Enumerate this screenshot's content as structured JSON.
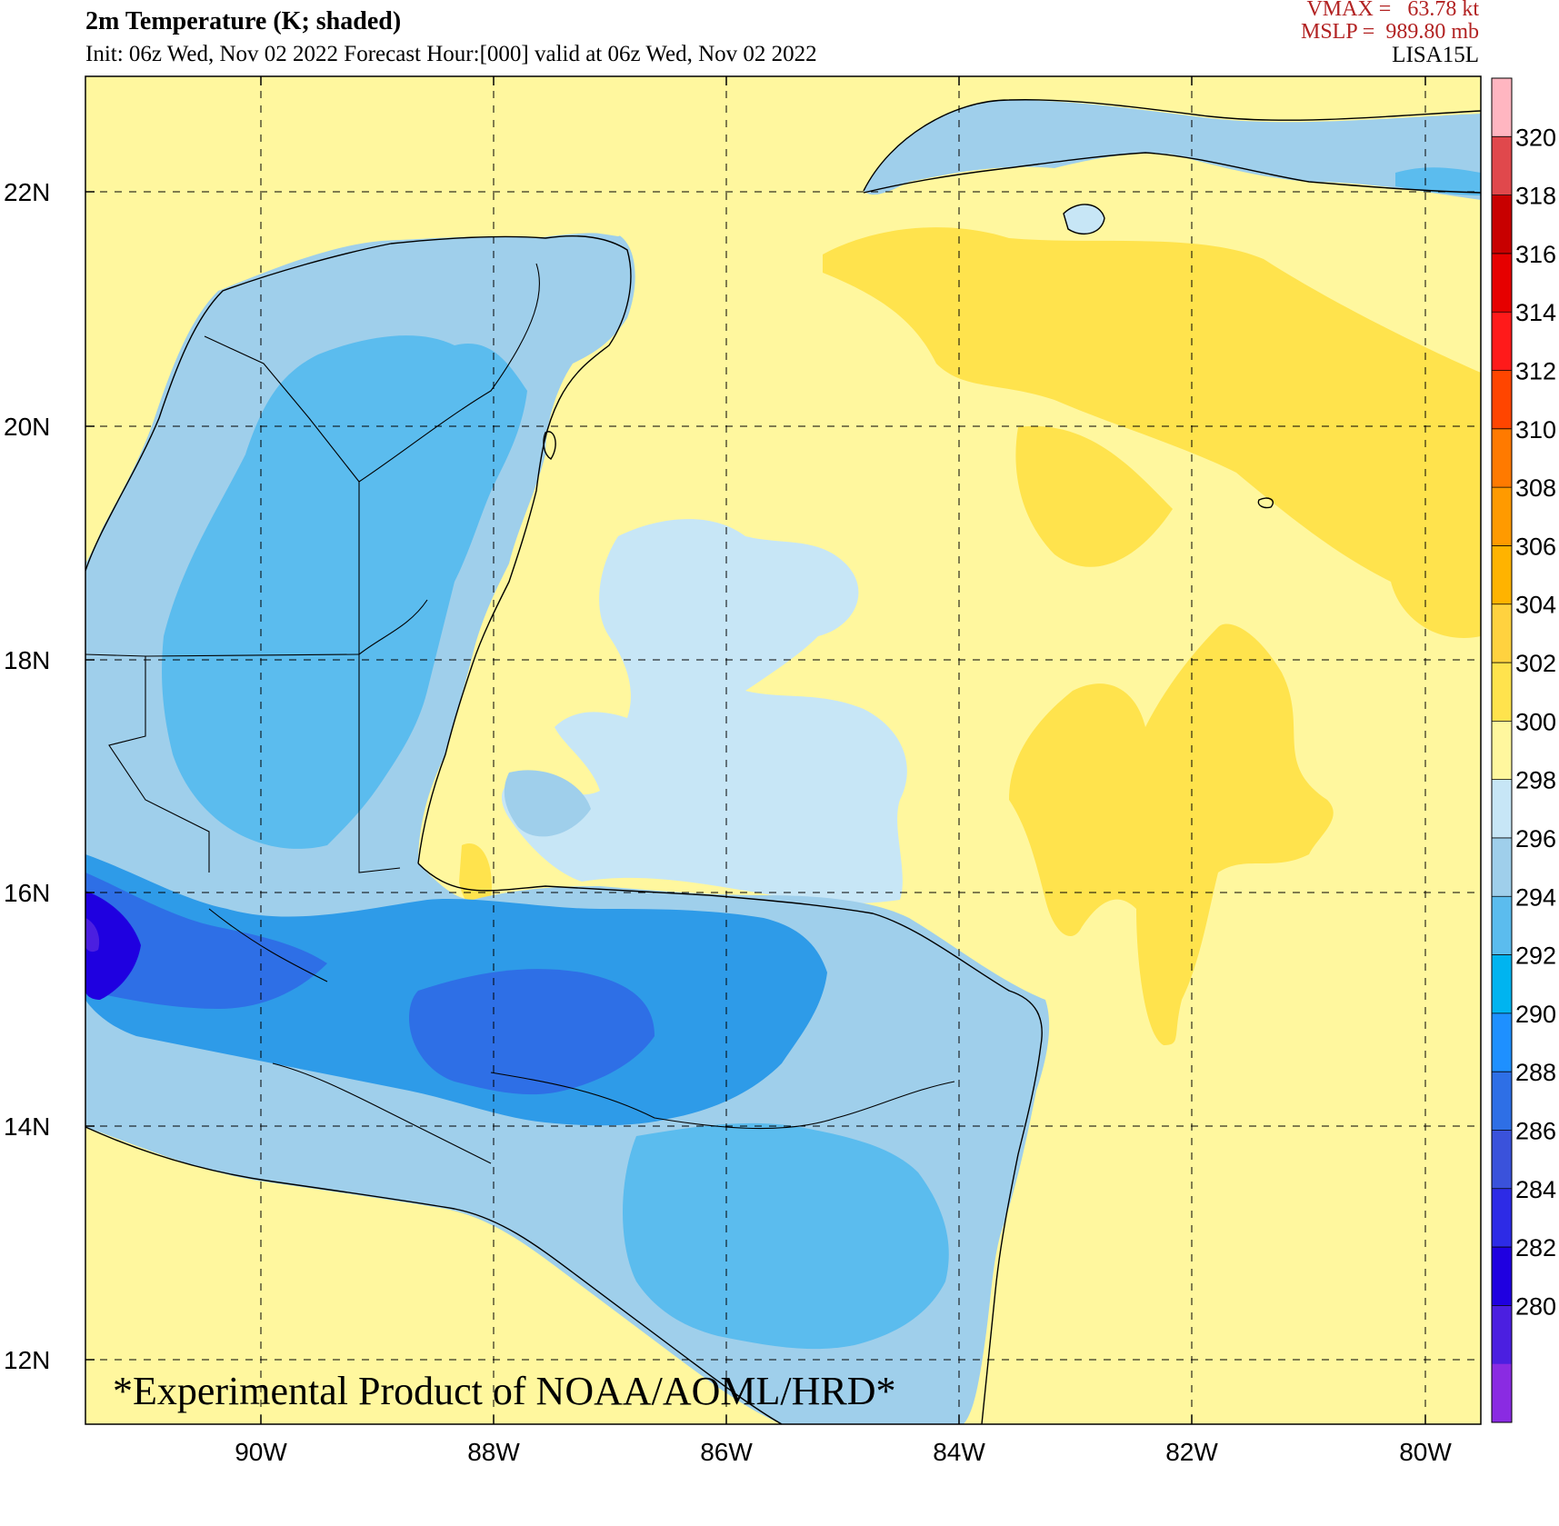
{
  "header": {
    "title": "2m Temperature (K; shaded)",
    "subtitle": "Init: 06z Wed, Nov 02 2022  Forecast Hour:[000]  valid at 06z Wed, Nov 02 2022",
    "vmax": "VMAX =   63.78 kt",
    "mslp": "MSLP =  989.80 mb",
    "storm": "LISA15L"
  },
  "watermark": "*Experimental Product of NOAA/AOML/HRD*",
  "map": {
    "lon_ticks": [
      "90W",
      "88W",
      "86W",
      "84W",
      "82W",
      "80W"
    ],
    "lat_ticks": [
      "22N",
      "20N",
      "18N",
      "16N",
      "14N",
      "12N"
    ],
    "grid": "dashed"
  },
  "colorbar": {
    "units": "K",
    "labels": [
      "320",
      "318",
      "316",
      "314",
      "312",
      "310",
      "308",
      "306",
      "304",
      "302",
      "300",
      "298",
      "296",
      "294",
      "292",
      "290",
      "288",
      "286",
      "284",
      "282",
      "280"
    ],
    "colors": [
      "#ffb6c1",
      "#e0484c",
      "#c80000",
      "#e60000",
      "#ff1a1a",
      "#ff4500",
      "#ff7a00",
      "#ff9a00",
      "#ffb300",
      "#ffd23f",
      "#ffe34d",
      "#fff79e",
      "#c7e6f6",
      "#9fcfeb",
      "#5bbcee",
      "#00b4f0",
      "#1e90ff",
      "#2e6fe6",
      "#3a52db",
      "#2d2be6",
      "#1f00e0",
      "#4b1fe0",
      "#8a2be2"
    ]
  }
}
